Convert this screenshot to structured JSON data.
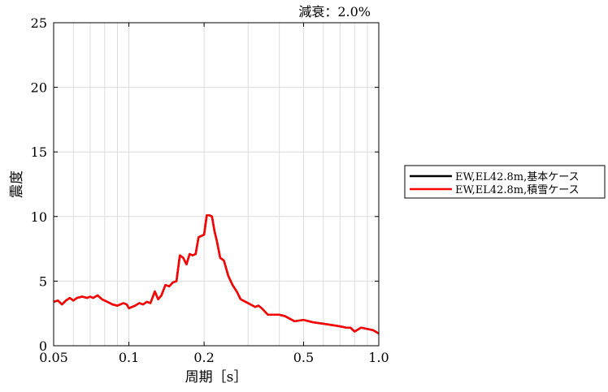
{
  "chart_data": {
    "type": "line",
    "annotation": "減衰：2.0%",
    "xlabel": "周期［s］",
    "ylabel": "震度",
    "xscale": "log",
    "xlim": [
      0.05,
      1.0
    ],
    "ylim": [
      0,
      25
    ],
    "xticks": [
      0.05,
      0.1,
      0.2,
      0.5,
      1.0
    ],
    "xtick_labels": [
      "0.05",
      "0.1",
      "0.2",
      "0.5",
      "1.0"
    ],
    "yticks": [
      0,
      5,
      10,
      15,
      20,
      25
    ],
    "ytick_labels": [
      "0",
      "5",
      "10",
      "15",
      "20",
      "25"
    ],
    "grid": true,
    "legend_position": "outside-right",
    "series": [
      {
        "name": "EW,EL42.8m,基本ケース",
        "color": "#000000",
        "x": [
          0.05,
          0.052,
          0.054,
          0.056,
          0.058,
          0.06,
          0.062,
          0.065,
          0.068,
          0.07,
          0.072,
          0.075,
          0.078,
          0.082,
          0.086,
          0.09,
          0.095,
          0.098,
          0.1,
          0.103,
          0.106,
          0.11,
          0.114,
          0.118,
          0.122,
          0.127,
          0.131,
          0.135,
          0.14,
          0.145,
          0.15,
          0.155,
          0.16,
          0.165,
          0.17,
          0.175,
          0.18,
          0.185,
          0.19,
          0.195,
          0.2,
          0.205,
          0.21,
          0.215,
          0.22,
          0.225,
          0.232,
          0.24,
          0.25,
          0.26,
          0.27,
          0.28,
          0.3,
          0.32,
          0.33,
          0.34,
          0.36,
          0.4,
          0.42,
          0.44,
          0.46,
          0.5,
          0.55,
          0.6,
          0.65,
          0.7,
          0.74,
          0.77,
          0.8,
          0.85,
          0.9,
          0.95,
          1.0
        ],
        "y": [
          3.4,
          3.5,
          3.2,
          3.5,
          3.7,
          3.5,
          3.7,
          3.8,
          3.7,
          3.8,
          3.7,
          3.9,
          3.6,
          3.4,
          3.2,
          3.1,
          3.3,
          3.2,
          2.9,
          3.0,
          3.1,
          3.3,
          3.2,
          3.4,
          3.3,
          4.2,
          3.6,
          3.9,
          4.7,
          4.6,
          4.9,
          5.0,
          7.0,
          6.8,
          6.3,
          7.1,
          7.0,
          7.1,
          8.4,
          8.5,
          8.6,
          10.1,
          10.1,
          10.0,
          8.9,
          8.1,
          6.8,
          6.6,
          5.4,
          4.7,
          4.2,
          3.6,
          3.3,
          3.0,
          3.1,
          2.9,
          2.4,
          2.4,
          2.3,
          2.1,
          1.9,
          2.0,
          1.8,
          1.7,
          1.6,
          1.5,
          1.4,
          1.4,
          1.1,
          1.4,
          1.3,
          1.2,
          0.95
        ]
      },
      {
        "name": "EW,EL42.8m,積雪ケース",
        "color": "#ff0000",
        "x": [
          0.05,
          0.052,
          0.054,
          0.056,
          0.058,
          0.06,
          0.062,
          0.065,
          0.068,
          0.07,
          0.072,
          0.075,
          0.078,
          0.082,
          0.086,
          0.09,
          0.095,
          0.098,
          0.1,
          0.103,
          0.106,
          0.11,
          0.114,
          0.118,
          0.122,
          0.127,
          0.131,
          0.135,
          0.14,
          0.145,
          0.15,
          0.155,
          0.16,
          0.165,
          0.17,
          0.175,
          0.18,
          0.185,
          0.19,
          0.195,
          0.2,
          0.205,
          0.21,
          0.215,
          0.22,
          0.225,
          0.232,
          0.24,
          0.25,
          0.26,
          0.27,
          0.28,
          0.3,
          0.32,
          0.33,
          0.34,
          0.36,
          0.4,
          0.42,
          0.44,
          0.46,
          0.5,
          0.55,
          0.6,
          0.65,
          0.7,
          0.74,
          0.77,
          0.8,
          0.85,
          0.9,
          0.95,
          1.0
        ],
        "y": [
          3.4,
          3.5,
          3.2,
          3.5,
          3.7,
          3.5,
          3.7,
          3.8,
          3.7,
          3.8,
          3.7,
          3.9,
          3.6,
          3.4,
          3.2,
          3.1,
          3.3,
          3.2,
          2.9,
          3.0,
          3.1,
          3.3,
          3.2,
          3.4,
          3.3,
          4.2,
          3.6,
          3.9,
          4.7,
          4.6,
          4.9,
          5.0,
          7.0,
          6.8,
          6.3,
          7.1,
          7.0,
          7.1,
          8.4,
          8.5,
          8.6,
          10.1,
          10.1,
          10.0,
          8.9,
          8.1,
          6.8,
          6.6,
          5.4,
          4.7,
          4.2,
          3.6,
          3.3,
          3.0,
          3.1,
          2.9,
          2.4,
          2.4,
          2.3,
          2.1,
          1.9,
          2.0,
          1.8,
          1.7,
          1.6,
          1.5,
          1.4,
          1.4,
          1.1,
          1.4,
          1.3,
          1.2,
          0.95
        ]
      }
    ]
  }
}
